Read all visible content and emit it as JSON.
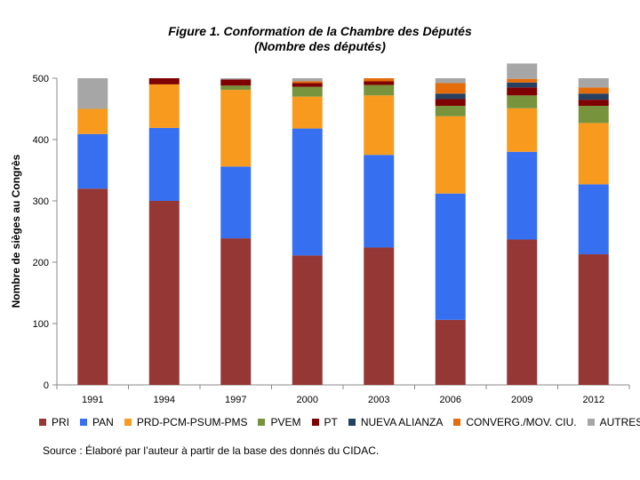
{
  "chart_data": {
    "type": "bar",
    "stacked": true,
    "title": "Figure 1. Conformation de la Chambre des Députés",
    "subtitle": "(Nombre des députés)",
    "ylabel": "Nombre de sièges au Congrès",
    "xlabel": "",
    "ylim": [
      0,
      500
    ],
    "yticks": [
      "0",
      "100",
      "200",
      "300",
      "400",
      "500"
    ],
    "categories": [
      "1991",
      "1994",
      "1997",
      "2000",
      "2003",
      "2006",
      "2009",
      "2012"
    ],
    "series": [
      {
        "name": "PRI",
        "color": "#953735",
        "values": [
          320,
          300,
          239,
          211,
          224,
          106,
          237,
          213
        ]
      },
      {
        "name": "PAN",
        "color": "#3670f0",
        "values": [
          89,
          119,
          117,
          207,
          151,
          206,
          143,
          114
        ]
      },
      {
        "name": "PRD-PCM-PSUM-PMS",
        "color": "#f79a1d",
        "values": [
          41,
          71,
          125,
          52,
          97,
          126,
          71,
          100
        ]
      },
      {
        "name": "PVEM",
        "color": "#77933c",
        "values": [
          0,
          0,
          7,
          16,
          17,
          17,
          21,
          28
        ]
      },
      {
        "name": "PT",
        "color": "#7f0000",
        "values": [
          0,
          10,
          10,
          6,
          6,
          11,
          13,
          10
        ]
      },
      {
        "name": "NUEVA ALIANZA",
        "color": "#254061",
        "values": [
          0,
          0,
          0,
          0,
          0,
          9,
          8,
          10
        ]
      },
      {
        "name": "CONVERG./MOV. CIU.",
        "color": "#e46c0a",
        "values": [
          0,
          0,
          0,
          3,
          5,
          17,
          6,
          10
        ]
      },
      {
        "name": "AUTRES",
        "color": "#a6a6a6",
        "values": [
          50,
          0,
          2,
          5,
          0,
          8,
          25,
          15
        ]
      }
    ],
    "grid": false,
    "legend_position": "bottom"
  },
  "source": "Source : Élaboré par l’auteur à partir de la base des donnés du CIDAC."
}
